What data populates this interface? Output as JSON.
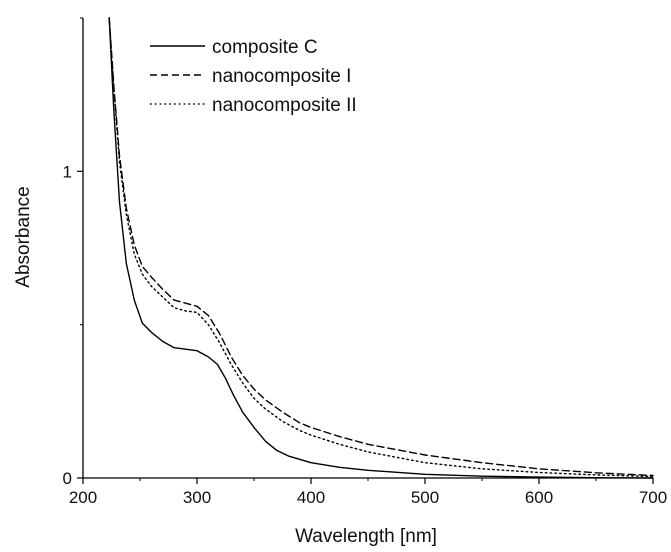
{
  "chart_data": {
    "type": "line",
    "title": "",
    "xlabel": "Wavelength [nm]",
    "ylabel": "Absorbance",
    "xlim": [
      200,
      700
    ],
    "ylim": [
      0,
      1.5
    ],
    "xticks": [
      200,
      300,
      400,
      500,
      600,
      700
    ],
    "xtick_labels": [
      "200",
      "300",
      "400",
      "500",
      "600",
      "700"
    ],
    "yticks": [
      0,
      1
    ],
    "ytick_labels": [
      "0",
      "1"
    ],
    "grid": false,
    "legend_position": "top-left",
    "series": [
      {
        "name": "composite C",
        "style": "solid",
        "color": "#000000",
        "x": [
          223,
          227,
          232,
          238,
          245,
          252,
          260,
          270,
          280,
          290,
          300,
          310,
          318,
          325,
          332,
          340,
          350,
          360,
          370,
          380,
          400,
          425,
          450,
          500,
          550,
          600,
          650,
          700
        ],
        "y": [
          1.5,
          1.2,
          0.9,
          0.7,
          0.58,
          0.505,
          0.475,
          0.445,
          0.425,
          0.42,
          0.415,
          0.395,
          0.37,
          0.325,
          0.27,
          0.215,
          0.165,
          0.12,
          0.09,
          0.072,
          0.05,
          0.035,
          0.025,
          0.012,
          0.006,
          0.003,
          0.001,
          0.0
        ]
      },
      {
        "name": "nanocomposite I",
        "style": "dashed",
        "color": "#000000",
        "x": [
          223,
          227,
          232,
          238,
          245,
          252,
          260,
          270,
          280,
          290,
          300,
          310,
          320,
          330,
          340,
          350,
          360,
          375,
          390,
          400,
          425,
          450,
          500,
          550,
          600,
          650,
          700
        ],
        "y": [
          1.5,
          1.28,
          1.05,
          0.88,
          0.76,
          0.69,
          0.655,
          0.615,
          0.58,
          0.57,
          0.56,
          0.53,
          0.47,
          0.395,
          0.335,
          0.29,
          0.255,
          0.215,
          0.18,
          0.165,
          0.135,
          0.11,
          0.075,
          0.05,
          0.03,
          0.017,
          0.008
        ]
      },
      {
        "name": "nanocomposite II",
        "style": "dotted",
        "color": "#000000",
        "x": [
          223,
          227,
          232,
          238,
          245,
          252,
          260,
          270,
          280,
          290,
          300,
          310,
          320,
          330,
          340,
          350,
          360,
          375,
          390,
          400,
          425,
          450,
          500,
          550,
          600,
          650,
          700
        ],
        "y": [
          1.5,
          1.27,
          1.03,
          0.86,
          0.73,
          0.665,
          0.625,
          0.59,
          0.555,
          0.545,
          0.54,
          0.5,
          0.44,
          0.37,
          0.31,
          0.26,
          0.225,
          0.185,
          0.155,
          0.14,
          0.11,
          0.085,
          0.05,
          0.03,
          0.018,
          0.01,
          0.005
        ]
      }
    ]
  }
}
